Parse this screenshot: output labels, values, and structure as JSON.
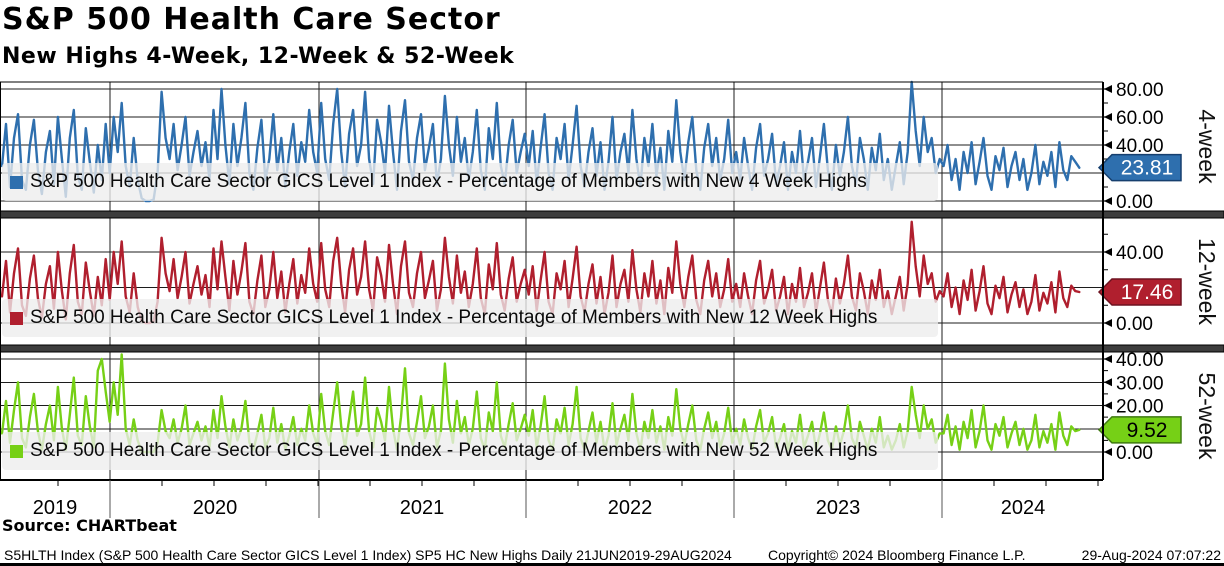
{
  "header": {
    "title": "S&P 500 Health Care Sector",
    "subtitle": "New Highs 4-Week, 12-Week & 52-Week"
  },
  "source_line": "Source: CHARTbeat",
  "footer": {
    "left": "S5HLTH Index (S&P 500 Health Care Sector GICS Level 1 Index) SP5 HC New Highs  Daily 21JUN2019-29AUG2024",
    "copyright": "Copyright© 2024 Bloomberg Finance L.P.",
    "timestamp": "29-Aug-2024 07:07:22"
  },
  "x_axis": {
    "year_labels": [
      "2019",
      "2020",
      "2021",
      "2022",
      "2023",
      "2024"
    ],
    "range": "21JUN2019-29AUG2024"
  },
  "chart_data": {
    "type": "line",
    "title": "S&P 500 Health Care Sector - New Highs 4-Week, 12-Week & 52-Week",
    "x_unit": "weeks since 21JUN2019, weekly samples through 29AUG2024",
    "grid": true,
    "panels": [
      {
        "axis_label": "4-week",
        "legend": "S&P 500 Health Care Sector GICS Level 1 Index - Percentage of Members with New 4 Week Highs",
        "color": "#2e6fae",
        "badge_border": "#163f6e",
        "badge_text_color": "#ffffff",
        "last_value": "23.81",
        "ylim": [
          0,
          85
        ],
        "yticks": [
          0,
          20,
          40,
          60,
          80
        ],
        "ytick_labels": [
          "0.00",
          "20.00",
          "40.00",
          "60.00",
          "80.00"
        ],
        "values": [
          25,
          55,
          10,
          45,
          62,
          15,
          8,
          40,
          58,
          22,
          5,
          35,
          50,
          12,
          60,
          30,
          3,
          45,
          65,
          18,
          8,
          52,
          28,
          6,
          40,
          15,
          55,
          20,
          60,
          35,
          70,
          25,
          10,
          45,
          15,
          2,
          0,
          0,
          1,
          20,
          78,
          45,
          30,
          55,
          22,
          40,
          60,
          18,
          35,
          50,
          25,
          42,
          15,
          65,
          30,
          80,
          40,
          12,
          55,
          25,
          45,
          70,
          20,
          8,
          38,
          58,
          15,
          30,
          62,
          22,
          45,
          10,
          35,
          55,
          18,
          42,
          28,
          65,
          35,
          20,
          70,
          30,
          15,
          55,
          80,
          35,
          10,
          48,
          65,
          25,
          40,
          78,
          30,
          12,
          58,
          42,
          20,
          68,
          35,
          8,
          50,
          72,
          28,
          15,
          45,
          62,
          22,
          38,
          55,
          12,
          30,
          75,
          40,
          18,
          60,
          28,
          45,
          15,
          35,
          65,
          22,
          8,
          52,
          30,
          70,
          25,
          12,
          40,
          58,
          20,
          35,
          48,
          25,
          50,
          12,
          38,
          62,
          20,
          8,
          45,
          30,
          55,
          15,
          40,
          68,
          25,
          10,
          35,
          52,
          18,
          42,
          8,
          28,
          60,
          15,
          35,
          48,
          20,
          65,
          30,
          10,
          45,
          25,
          55,
          18,
          38,
          8,
          50,
          28,
          72,
          35,
          15,
          42,
          60,
          22,
          8,
          38,
          55,
          25,
          45,
          15,
          30,
          58,
          20,
          35,
          15,
          45,
          25,
          8,
          38,
          55,
          18,
          30,
          48,
          12,
          25,
          42,
          8,
          35,
          20,
          50,
          15,
          28,
          45,
          10,
          32,
          55,
          22,
          8,
          40,
          18,
          35,
          60,
          25,
          12,
          45,
          30,
          8,
          38,
          22,
          48,
          15,
          30,
          8,
          25,
          42,
          12,
          35,
          85,
          50,
          25,
          60,
          35,
          45,
          20,
          30,
          25,
          40,
          15,
          30,
          8,
          35,
          20,
          42,
          12,
          28,
          45,
          18,
          8,
          32,
          22,
          38,
          10,
          25,
          35,
          15,
          30,
          8,
          20,
          40,
          12,
          28,
          18,
          35,
          10,
          42,
          22,
          15,
          32,
          28,
          23.81
        ]
      },
      {
        "axis_label": "12-week",
        "legend": "S&P 500 Health Care Sector GICS Level 1 Index - Percentage of Members with New 12 Week Highs",
        "color": "#b01f2e",
        "badge_border": "#6e1220",
        "badge_text_color": "#ffffff",
        "last_value": "17.46",
        "ylim": [
          0,
          59
        ],
        "yticks": [
          0,
          20,
          40
        ],
        "ytick_labels": [
          "0.00",
          "20.00",
          "40.00"
        ],
        "values": [
          15,
          35,
          6,
          28,
          42,
          10,
          4,
          25,
          38,
          14,
          3,
          22,
          32,
          8,
          40,
          18,
          2,
          28,
          44,
          12,
          5,
          34,
          18,
          4,
          26,
          10,
          36,
          13,
          40,
          22,
          46,
          15,
          6,
          28,
          9,
          1,
          0,
          0,
          1,
          12,
          48,
          28,
          18,
          36,
          14,
          26,
          40,
          11,
          22,
          32,
          16,
          27,
          9,
          42,
          19,
          46,
          26,
          7,
          35,
          16,
          29,
          45,
          12,
          5,
          24,
          38,
          9,
          19,
          40,
          14,
          29,
          6,
          22,
          36,
          11,
          27,
          17,
          42,
          22,
          12,
          45,
          19,
          9,
          35,
          48,
          22,
          6,
          30,
          42,
          16,
          26,
          46,
          19,
          7,
          37,
          27,
          12,
          44,
          22,
          5,
          32,
          46,
          17,
          9,
          28,
          40,
          14,
          24,
          35,
          7,
          19,
          48,
          26,
          11,
          38,
          17,
          29,
          9,
          22,
          42,
          14,
          5,
          33,
          19,
          45,
          16,
          7,
          25,
          37,
          12,
          22,
          30,
          16,
          32,
          7,
          24,
          40,
          12,
          5,
          28,
          19,
          35,
          9,
          25,
          43,
          15,
          6,
          22,
          33,
          11,
          26,
          5,
          17,
          38,
          9,
          22,
          30,
          12,
          41,
          19,
          6,
          28,
          15,
          35,
          11,
          24,
          5,
          31,
          17,
          46,
          22,
          9,
          26,
          38,
          13,
          5,
          24,
          35,
          15,
          28,
          9,
          19,
          36,
          12,
          22,
          9,
          28,
          15,
          5,
          24,
          35,
          11,
          19,
          30,
          7,
          15,
          26,
          5,
          22,
          12,
          31,
          9,
          17,
          28,
          6,
          20,
          34,
          13,
          5,
          25,
          11,
          22,
          38,
          15,
          7,
          28,
          18,
          5,
          24,
          13,
          30,
          9,
          18,
          5,
          15,
          26,
          7,
          22,
          57,
          32,
          15,
          38,
          22,
          28,
          12,
          18,
          15,
          28,
          9,
          20,
          5,
          24,
          13,
          30,
          7,
          18,
          32,
          11,
          5,
          21,
          14,
          26,
          6,
          16,
          23,
          9,
          19,
          5,
          12,
          27,
          7,
          17,
          11,
          23,
          6,
          29,
          14,
          9,
          21,
          18,
          17.46
        ]
      },
      {
        "axis_label": "52-week",
        "legend": "S&P 500 Health Care Sector GICS Level 1 Index - Percentage of Members with New 52 Week Highs",
        "color": "#76d016",
        "badge_border": "#3f7a10",
        "badge_text_color": "#000000",
        "last_value": "9.52",
        "ylim": [
          0,
          43
        ],
        "yticks": [
          0,
          10,
          20,
          30,
          40
        ],
        "ytick_labels": [
          "0.00",
          "10.00",
          "20.00",
          "30.00",
          "40.00"
        ],
        "values": [
          8,
          22,
          4,
          18,
          30,
          6,
          2,
          15,
          25,
          9,
          1,
          12,
          20,
          5,
          28,
          10,
          1,
          16,
          32,
          7,
          3,
          24,
          11,
          2,
          35,
          40,
          26,
          13,
          30,
          16,
          42,
          10,
          3,
          14,
          5,
          0,
          0,
          0,
          0,
          4,
          18,
          9,
          6,
          14,
          4,
          10,
          20,
          3,
          8,
          13,
          5,
          11,
          2,
          18,
          6,
          24,
          11,
          2,
          14,
          5,
          10,
          22,
          4,
          1,
          8,
          16,
          2,
          6,
          19,
          4,
          12,
          1,
          7,
          15,
          3,
          10,
          5,
          20,
          8,
          3,
          25,
          9,
          3,
          17,
          30,
          11,
          2,
          14,
          26,
          7,
          12,
          32,
          9,
          2,
          19,
          13,
          5,
          28,
          10,
          1,
          15,
          36,
          8,
          3,
          13,
          24,
          6,
          11,
          20,
          2,
          9,
          38,
          14,
          4,
          22,
          8,
          15,
          3,
          10,
          26,
          6,
          1,
          17,
          9,
          30,
          7,
          2,
          12,
          21,
          5,
          10,
          16,
          7,
          18,
          2,
          11,
          24,
          5,
          1,
          14,
          8,
          19,
          3,
          12,
          28,
          6,
          1,
          9,
          17,
          4,
          13,
          1,
          7,
          21,
          3,
          10,
          16,
          5,
          25,
          8,
          1,
          13,
          6,
          18,
          4,
          11,
          1,
          15,
          7,
          27,
          10,
          3,
          12,
          20,
          5,
          1,
          10,
          17,
          6,
          13,
          2,
          8,
          19,
          4,
          10,
          3,
          14,
          6,
          1,
          11,
          18,
          4,
          8,
          15,
          2,
          6,
          12,
          1,
          9,
          4,
          16,
          2,
          7,
          13,
          1,
          8,
          17,
          5,
          1,
          11,
          3,
          9,
          20,
          6,
          2,
          13,
          7,
          1,
          10,
          4,
          15,
          2,
          7,
          1,
          5,
          12,
          2,
          9,
          28,
          16,
          6,
          20,
          10,
          14,
          4,
          8,
          8,
          16,
          3,
          11,
          1,
          13,
          6,
          18,
          2,
          9,
          20,
          5,
          1,
          12,
          7,
          15,
          2,
          8,
          13,
          3,
          10,
          1,
          5,
          16,
          2,
          9,
          4,
          12,
          1,
          17,
          7,
          3,
          11,
          9,
          9.52
        ]
      }
    ]
  }
}
